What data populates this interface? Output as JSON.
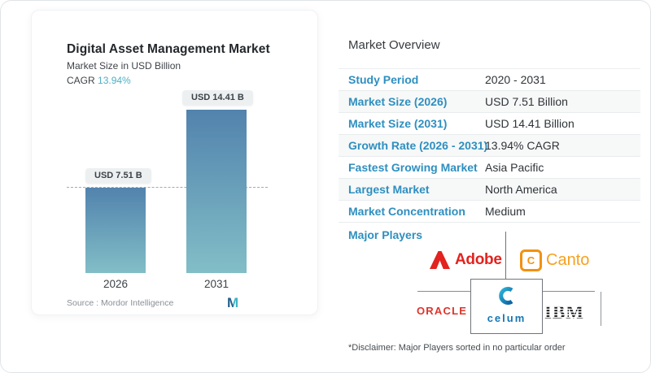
{
  "card": {
    "title": "Digital Asset Management Market",
    "subtitle": "Market Size in USD Billion",
    "cagr_label": "CAGR",
    "cagr_value": "13.94%",
    "source_label": "Source :",
    "source_value": "Mordor Intelligence"
  },
  "chart_data": {
    "type": "bar",
    "title": "Digital Asset Management Market",
    "subtitle": "Market Size in USD Billion",
    "unit": "USD Billion",
    "categories": [
      "2026",
      "2031"
    ],
    "values": [
      7.51,
      14.41
    ],
    "labels": [
      "USD 7.51 B",
      "USD 14.41 B"
    ],
    "cagr": "13.94%",
    "reference_line": 7.51,
    "ylim": [
      0,
      14.41
    ],
    "grid": false,
    "bar_gradient": [
      "#5283ad",
      "#82bec7"
    ]
  },
  "overview": {
    "heading": "Market Overview",
    "rows": [
      {
        "label": "Study Period",
        "value": "2020 - 2031"
      },
      {
        "label": "Market Size (2026)",
        "value": "USD 7.51 Billion"
      },
      {
        "label": "Market Size (2031)",
        "value": "USD 14.41 Billion"
      },
      {
        "label": "Growth Rate (2026 - 2031)",
        "value": "13.94% CAGR"
      },
      {
        "label": "Fastest Growing Market",
        "value": "Asia Pacific"
      },
      {
        "label": "Largest Market",
        "value": "North America"
      },
      {
        "label": "Market Concentration",
        "value": "Medium"
      }
    ],
    "major_players_label": "Major Players",
    "players": {
      "adobe": "Adobe",
      "canto_c": "C",
      "canto": "Canto",
      "oracle": "ORACLE",
      "celum": "celum",
      "ibm": "IBM"
    },
    "disclaimer": "*Disclaimer: Major Players sorted in no particular order"
  },
  "colors": {
    "table_label_blue": "#2e8fc0",
    "cagr_teal": "#4fb0c5",
    "bar_top": "#5283ad",
    "bar_bottom": "#82bec7",
    "adobe_red": "#e2231f",
    "canto_orange": "#f29111",
    "oracle_red": "#dd342b",
    "celum_blue": "#1576b2",
    "ibm_black": "#17191b",
    "mordor_navy": "#235e8a",
    "mordor_teal": "#3cb3c6"
  }
}
